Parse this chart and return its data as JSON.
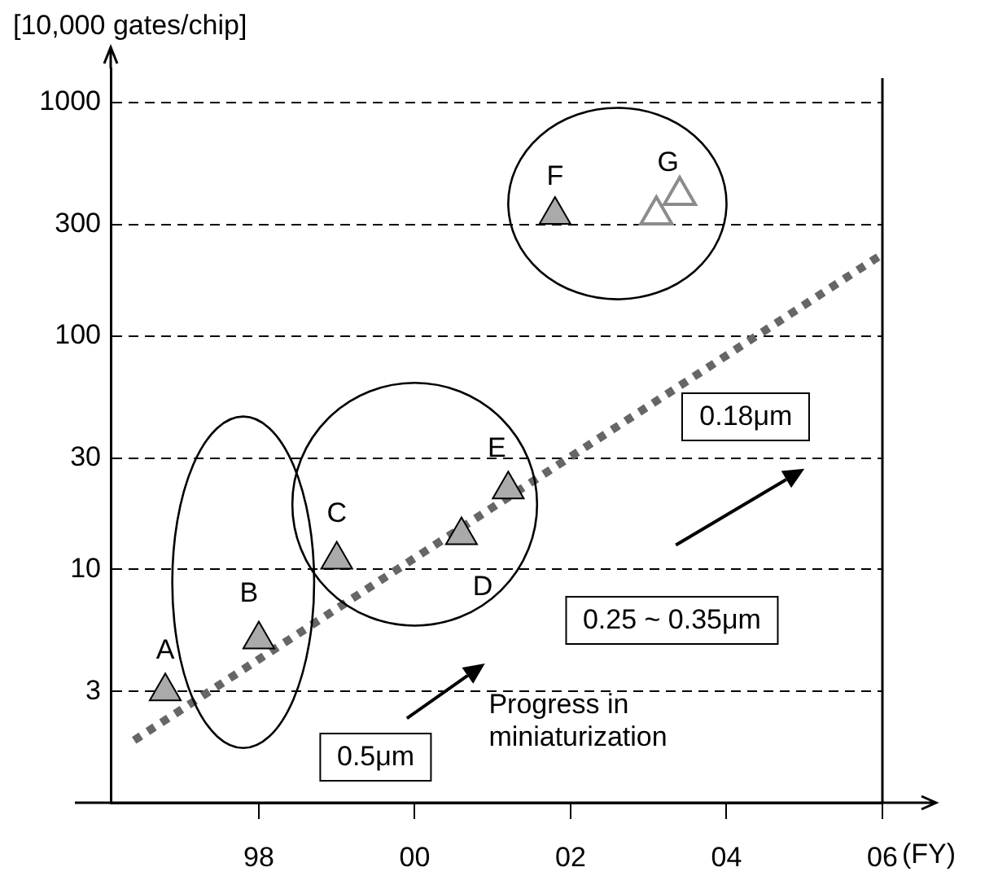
{
  "chart_data": {
    "type": "scatter",
    "ylabel": "[10,000 gates/chip]",
    "xlabel": "(FY)",
    "log": "y",
    "grid": "y",
    "legend": false,
    "xlim": [
      1996.1,
      2006
    ],
    "xticks": [
      {
        "value": 1998,
        "label": "98"
      },
      {
        "value": 2000,
        "label": "00"
      },
      {
        "value": 2002,
        "label": "02"
      },
      {
        "value": 2004,
        "label": "04"
      },
      {
        "value": 2006,
        "label": "06"
      }
    ],
    "ylim": [
      1,
      1400
    ],
    "yticks": [
      3,
      10,
      30,
      100,
      300,
      1000
    ],
    "series": [
      {
        "marker": "triangle",
        "color": "#aaaaaa",
        "x": [
          1996.8,
          1998.0,
          1999.0,
          2000.6,
          2001.2,
          2001.8
        ],
        "values": [
          3,
          5,
          11,
          14,
          22,
          330
        ]
      },
      {
        "marker": "triangle",
        "color": "#8c8c8c",
        "x": [
          2003.1,
          2003.4
        ],
        "values": [
          330,
          400
        ]
      },
      {
        "type": "line",
        "marker": "none",
        "color": "#666666",
        "line_style": "dotted",
        "x": [
          1996.4,
          2006
        ],
        "values": [
          1.85,
          224
        ]
      }
    ],
    "annotations": [
      {
        "text": "A",
        "x": 1996.8,
        "y": 3
      },
      {
        "text": "B",
        "x": 1998.0,
        "y": 5
      },
      {
        "text": "C",
        "x": 1999.0,
        "y": 11
      },
      {
        "text": "D",
        "x": 2000.6,
        "y": 14
      },
      {
        "text": "E",
        "x": 2001.2,
        "y": 22
      },
      {
        "text": "F",
        "x": 2001.8,
        "y": 330
      },
      {
        "text": "G",
        "x": 2003.25,
        "y": 360
      },
      "0.18μm",
      "0.25 ~ 0.35μm",
      "0.5μm",
      "Progress in miniaturization"
    ]
  }
}
